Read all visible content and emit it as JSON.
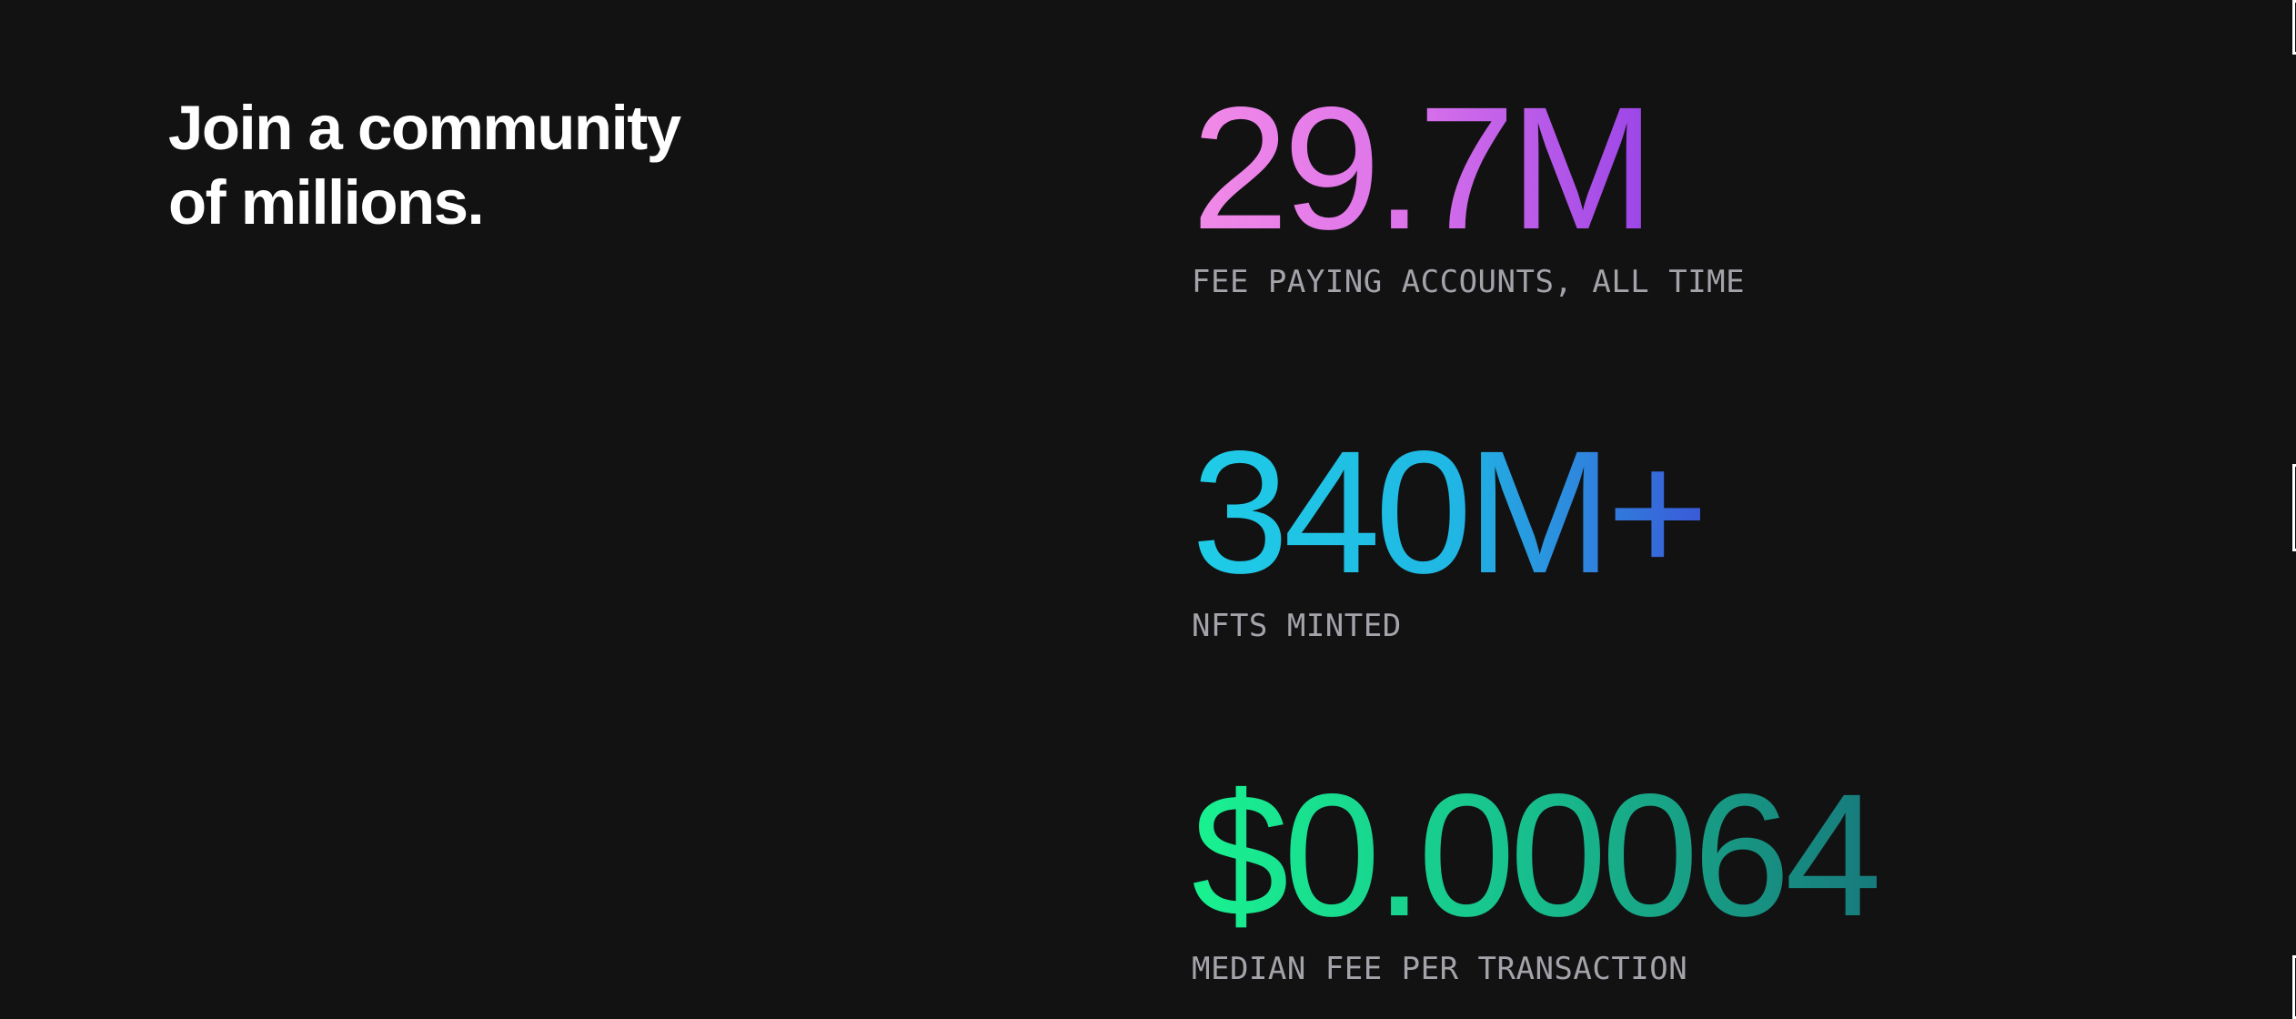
{
  "headline": {
    "line1": "Join a community",
    "line2": "of millions."
  },
  "stats": [
    {
      "value": "29.7M",
      "label": "FEE PAYING ACCOUNTS, ALL TIME",
      "gradient": [
        "#f28ae8",
        "#dd74ea",
        "#9b45e8"
      ]
    },
    {
      "value": "340M+",
      "label": "NFTS MINTED",
      "gradient": [
        "#1fcde6",
        "#20b8e4",
        "#3a5ad8"
      ]
    },
    {
      "value": "$0.00064",
      "label": "MEDIAN FEE PER TRANSACTION",
      "gradient": [
        "#19f290",
        "#18c48e",
        "#177a7c"
      ]
    }
  ],
  "colors": {
    "background": "#121212",
    "headline": "#ffffff",
    "label": "#a3a3aa"
  }
}
